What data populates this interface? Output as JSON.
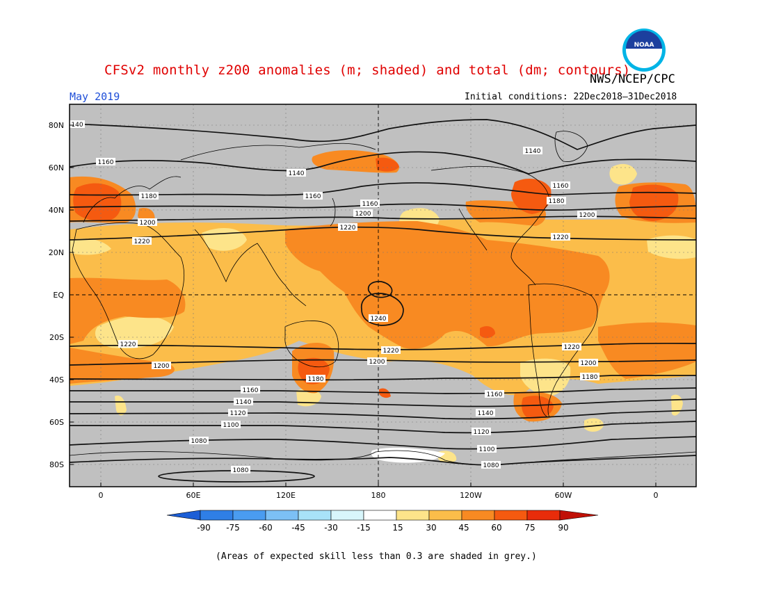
{
  "header": {
    "title": "CFSv2 monthly z200 anomalies (m; shaded) and total (dm; contours)",
    "agency": "NWS/NCEP/CPC",
    "month": "May 2019",
    "initial_conditions": "Initial conditions: 22Dec2018–31Dec2018",
    "logo_text": "NOAA"
  },
  "map": {
    "lat_labels": [
      "80N",
      "60N",
      "40N",
      "20N",
      "EQ",
      "20S",
      "40S",
      "60S",
      "80S"
    ],
    "lon_labels": [
      "0",
      "60E",
      "120E",
      "180",
      "120W",
      "60W",
      "0"
    ],
    "contour_labels": {
      "c1080a": "1080",
      "c1080b": "1080",
      "c1080c": "1080",
      "c1100a": "1100",
      "c1100b": "1100",
      "c1120a": "1120",
      "c1120b": "1120",
      "c1140a": "1140",
      "c1140b": "1140",
      "c1140c": "1140",
      "c1140d": "1140",
      "c1160a": "1160",
      "c1160b": "1160",
      "c1160c": "1160",
      "c1160d": "1160",
      "c1180a": "1180",
      "c1180b": "1180",
      "c1180c": "1180",
      "c1180d": "1180",
      "c1200a": "1200",
      "c1200b": "1200",
      "c1200c": "1200",
      "c1200d": "1200",
      "c1200e": "1200",
      "c1200f": "1200",
      "c1220a": "1220",
      "c1220b": "1220",
      "c1220c": "1220",
      "c1220d": "1220",
      "c1220e": "1220",
      "c1240": "1240",
      "c140": "140"
    }
  },
  "colorbar": {
    "tick_labels": [
      "-90",
      "-75",
      "-60",
      "-45",
      "-30",
      "-15",
      "15",
      "30",
      "45",
      "60",
      "75",
      "90"
    ],
    "colors": [
      "#1c5ed6",
      "#2f7fe6",
      "#4a9cf0",
      "#7cc0f5",
      "#a8e2f8",
      "#d8f6fb",
      "#ffffff",
      "#fde48a",
      "#fbbd4a",
      "#f88a22",
      "#f55a10",
      "#e82c0a",
      "#c01006"
    ]
  },
  "footnote": "(Areas of expected skill less than 0.3 are shaded in grey.)"
}
